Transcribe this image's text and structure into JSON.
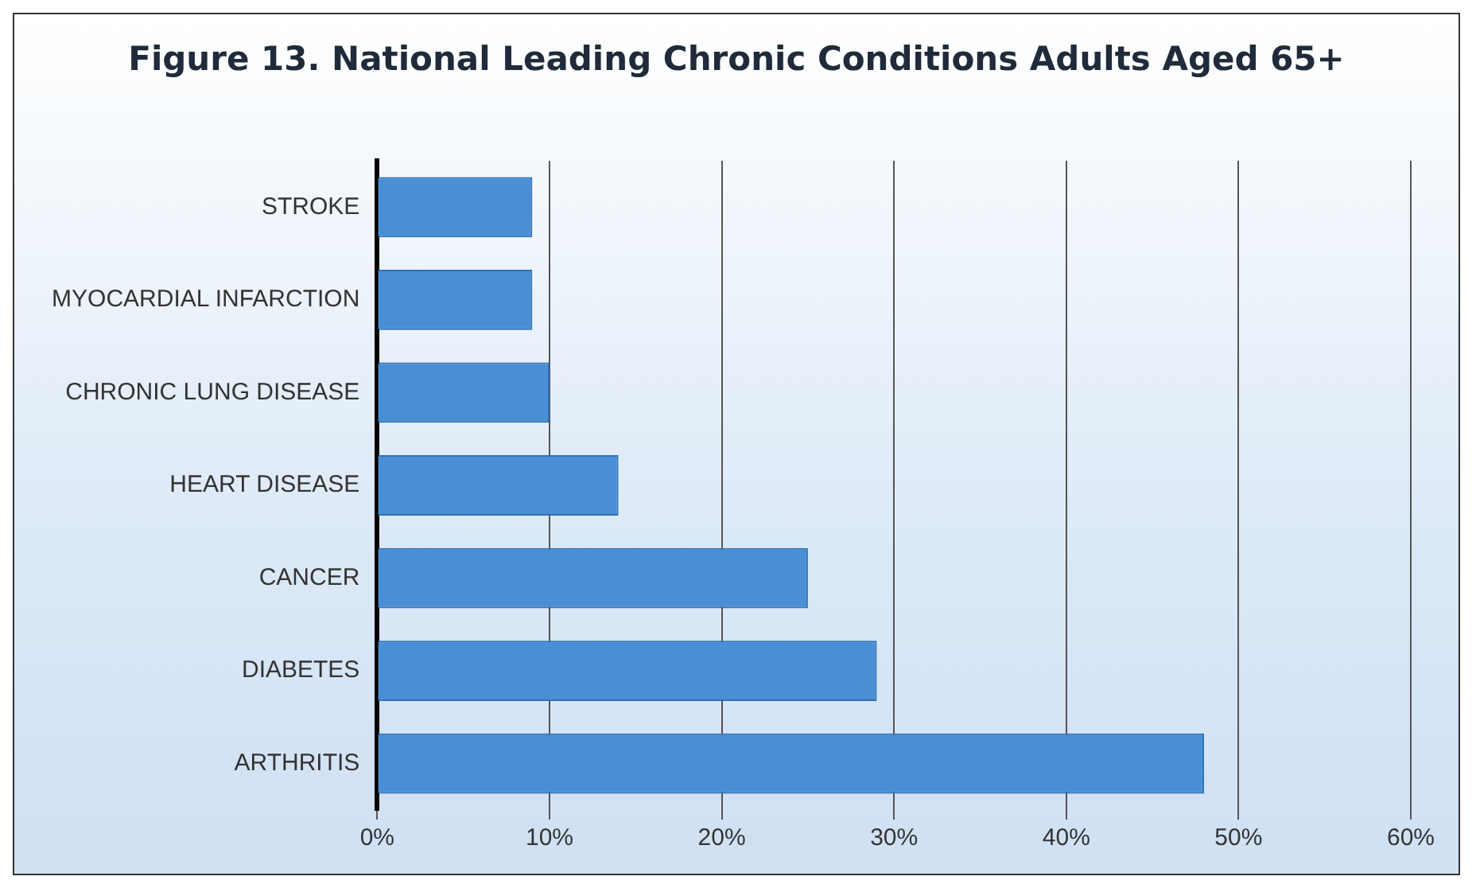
{
  "chart_data": {
    "type": "bar",
    "orientation": "horizontal",
    "title": "Figure 13. National Leading Chronic Conditions Adults Aged 65+",
    "categories": [
      "STROKE",
      "MYOCARDIAL INFARCTION",
      "CHRONIC LUNG DISEASE",
      "HEART DISEASE",
      "CANCER",
      "DIABETES",
      "ARTHRITIS"
    ],
    "values": [
      9,
      9,
      10,
      14,
      25,
      29,
      48
    ],
    "color": "#4a8fd6",
    "xlim": [
      0,
      60
    ],
    "xticks": [
      {
        "value": 0,
        "label": "0%"
      },
      {
        "value": 10,
        "label": "10%"
      },
      {
        "value": 20,
        "label": "20%"
      },
      {
        "value": 30,
        "label": "30%"
      },
      {
        "value": 40,
        "label": "40%"
      },
      {
        "value": 50,
        "label": "50%"
      },
      {
        "value": 60,
        "label": "60%"
      }
    ],
    "grid": "x",
    "legend": false
  }
}
